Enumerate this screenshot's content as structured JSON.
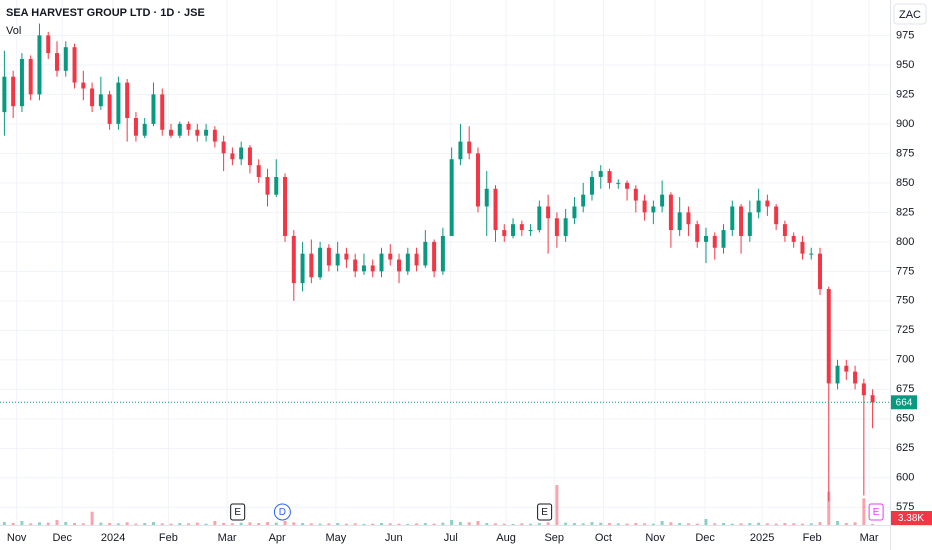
{
  "chart_data": {
    "type": "candlestick",
    "title": "SEA HARVEST GROUP LTD · 1D · JSE",
    "currency": "ZAC",
    "volume_label": "Vol",
    "up_color": "#089981",
    "down_color": "#f23645",
    "xlim": [
      0,
      100
    ],
    "xticks": [
      {
        "value": 1.9,
        "label": "Nov"
      },
      {
        "value": 7.1,
        "label": "Dec"
      },
      {
        "value": 12.9,
        "label": "2024"
      },
      {
        "value": 19.2,
        "label": "Feb"
      },
      {
        "value": 25.9,
        "label": "Mar"
      },
      {
        "value": 31.6,
        "label": "Apr"
      },
      {
        "value": 38.3,
        "label": "May"
      },
      {
        "value": 44.9,
        "label": "Jun"
      },
      {
        "value": 51.4,
        "label": "Jul"
      },
      {
        "value": 57.7,
        "label": "Aug"
      },
      {
        "value": 63.2,
        "label": "Sep"
      },
      {
        "value": 68.8,
        "label": "Oct"
      },
      {
        "value": 74.7,
        "label": "Nov"
      },
      {
        "value": 80.4,
        "label": "Dec"
      },
      {
        "value": 86.9,
        "label": "2025"
      },
      {
        "value": 92.6,
        "label": "Feb"
      },
      {
        "value": 99.1,
        "label": "Mar"
      }
    ],
    "ylim": [
      560,
      1005
    ],
    "yticks": [
      575,
      600,
      625,
      650,
      675,
      700,
      725,
      750,
      775,
      800,
      825,
      850,
      875,
      900,
      925,
      950,
      975
    ],
    "grid": true,
    "series": [
      {
        "name": "SEA HARVEST GROUP LTD",
        "open": [
          910,
          940,
          915,
          955,
          925,
          975,
          960,
          945,
          965,
          935,
          930,
          915,
          925,
          900,
          935,
          905,
          890,
          900,
          925,
          895,
          890,
          900,
          895,
          890,
          895,
          885,
          875,
          870,
          880,
          865,
          855,
          840,
          855,
          805,
          765,
          790,
          770,
          795,
          780,
          790,
          785,
          775,
          780,
          775,
          790,
          785,
          775,
          790,
          780,
          800,
          775,
          805,
          870,
          885,
          875,
          830,
          845,
          810,
          805,
          815,
          810,
          810,
          830,
          820,
          805,
          820,
          830,
          840,
          855,
          860,
          850,
          850,
          845,
          835,
          825,
          830,
          840,
          810,
          825,
          815,
          800,
          805,
          795,
          810,
          830,
          805,
          825,
          835,
          830,
          815,
          805,
          800,
          790,
          790,
          760,
          680,
          695,
          690,
          680,
          670
        ],
        "high": [
          962,
          945,
          960,
          958,
          985,
          978,
          970,
          970,
          968,
          945,
          935,
          940,
          928,
          940,
          938,
          910,
          905,
          935,
          930,
          900,
          902,
          902,
          900,
          900,
          898,
          890,
          880,
          885,
          882,
          870,
          862,
          870,
          858,
          810,
          800,
          802,
          800,
          798,
          800,
          795,
          790,
          790,
          785,
          795,
          798,
          790,
          795,
          795,
          810,
          802,
          812,
          880,
          900,
          898,
          880,
          860,
          848,
          815,
          820,
          818,
          815,
          835,
          840,
          825,
          828,
          838,
          850,
          860,
          865,
          862,
          853,
          852,
          848,
          840,
          835,
          852,
          842,
          838,
          830,
          818,
          812,
          808,
          815,
          835,
          832,
          835,
          845,
          840,
          832,
          818,
          808,
          805,
          795,
          795,
          762,
          700,
          700,
          695,
          684,
          675
        ],
        "low": [
          890,
          905,
          910,
          920,
          920,
          955,
          940,
          940,
          930,
          920,
          910,
          912,
          895,
          895,
          885,
          885,
          888,
          898,
          890,
          888,
          888,
          890,
          885,
          885,
          880,
          860,
          865,
          865,
          858,
          850,
          830,
          838,
          800,
          750,
          758,
          765,
          768,
          775,
          775,
          778,
          770,
          772,
          770,
          770,
          780,
          765,
          772,
          775,
          778,
          770,
          772,
          805,
          865,
          870,
          825,
          805,
          800,
          800,
          803,
          805,
          805,
          808,
          790,
          795,
          800,
          815,
          825,
          835,
          845,
          845,
          845,
          835,
          825,
          818,
          815,
          825,
          795,
          805,
          805,
          795,
          782,
          785,
          790,
          805,
          790,
          800,
          820,
          822,
          810,
          800,
          795,
          785,
          785,
          755,
          580,
          675,
          683,
          675,
          585,
          642
        ],
        "close": [
          940,
          915,
          955,
          925,
          975,
          960,
          945,
          965,
          935,
          930,
          915,
          925,
          900,
          935,
          905,
          890,
          900,
          925,
          895,
          890,
          900,
          895,
          890,
          895,
          885,
          875,
          870,
          880,
          865,
          855,
          840,
          855,
          805,
          765,
          790,
          770,
          795,
          780,
          790,
          785,
          775,
          780,
          775,
          790,
          785,
          775,
          790,
          780,
          800,
          775,
          805,
          870,
          885,
          875,
          830,
          845,
          810,
          805,
          815,
          810,
          810,
          830,
          820,
          805,
          820,
          830,
          840,
          855,
          860,
          850,
          850,
          845,
          835,
          825,
          830,
          840,
          810,
          825,
          815,
          800,
          805,
          795,
          810,
          830,
          805,
          825,
          835,
          830,
          815,
          805,
          800,
          790,
          790,
          760,
          680,
          695,
          690,
          680,
          670,
          664
        ],
        "volume": [
          9000,
          6000,
          12000,
          5000,
          8000,
          7000,
          15000,
          9000,
          6000,
          5000,
          40000,
          7000,
          6000,
          5000,
          8000,
          4000,
          6000,
          9000,
          5000,
          4000,
          6000,
          5000,
          7000,
          4000,
          12000,
          6000,
          5000,
          7000,
          8000,
          6000,
          9000,
          7000,
          12000,
          8000,
          6000,
          5000,
          4000,
          5000,
          6000,
          4000,
          5000,
          3000,
          4000,
          6000,
          5000,
          4000,
          3000,
          5000,
          6000,
          4000,
          7000,
          15000,
          9000,
          8000,
          12000,
          6000,
          5000,
          4000,
          3000,
          5000,
          4000,
          6000,
          8000,
          120000,
          7000,
          6000,
          5000,
          9000,
          7000,
          6000,
          5000,
          4000,
          6000,
          5000,
          4000,
          12000,
          8000,
          6000,
          5000,
          4000,
          18000,
          5000,
          6000,
          4000,
          5000,
          6000,
          7000,
          5000,
          4000,
          6000,
          5000,
          4000,
          5000,
          9000,
          100000,
          12000,
          6000,
          8000,
          80000,
          3380
        ],
        "volume_value_labels_last": "3.38K"
      }
    ],
    "last_price": 664,
    "events": [
      {
        "x": 27.1,
        "label": "E",
        "color": "#131722"
      },
      {
        "x": 32.2,
        "label": "D",
        "color": "#2962ff"
      },
      {
        "x": 62.1,
        "label": "E",
        "color": "#131722"
      },
      {
        "x": 99.9,
        "label": "E",
        "color": "#e040fb"
      }
    ]
  }
}
